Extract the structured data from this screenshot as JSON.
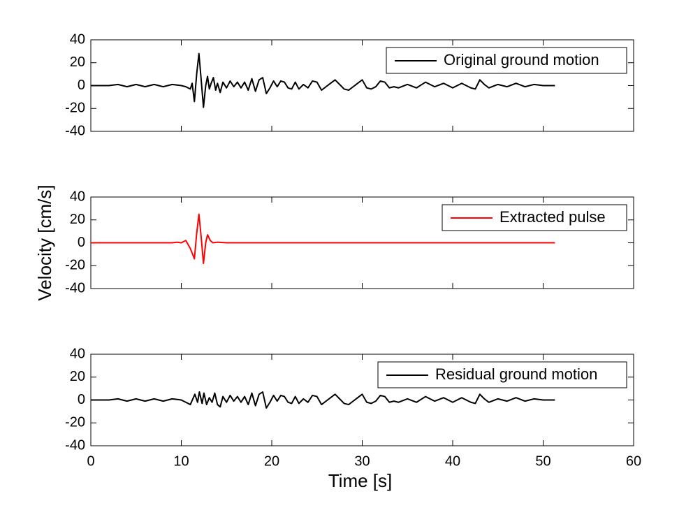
{
  "chart_data": [
    {
      "type": "line",
      "ylim": [
        -40,
        40
      ],
      "yticks": [
        -40,
        -20,
        0,
        20,
        40
      ],
      "xlim": [
        0,
        60
      ],
      "legend": "upper right",
      "series": [
        {
          "name": "Original ground motion",
          "color": "#000000",
          "x": [
            0,
            2,
            3,
            4,
            5,
            6,
            7,
            8,
            9,
            10,
            10.5,
            11,
            11.2,
            11.45,
            11.7,
            11.95,
            12.2,
            12.45,
            12.7,
            12.9,
            13.1,
            13.3,
            13.55,
            13.8,
            14,
            14.3,
            14.6,
            15,
            15.4,
            15.8,
            16.2,
            16.6,
            17,
            17.4,
            17.8,
            18.2,
            18.6,
            19,
            19.4,
            19.8,
            20.2,
            20.6,
            21,
            21.4,
            21.8,
            22.2,
            22.6,
            23,
            23.5,
            24,
            24.5,
            25,
            25.5,
            26,
            26.5,
            27,
            27.5,
            28,
            28.5,
            29,
            29.5,
            30,
            30.5,
            31,
            31.5,
            32,
            32.5,
            33,
            33.5,
            34,
            35,
            36,
            37,
            38,
            39,
            40,
            41,
            42,
            42.5,
            43,
            43.5,
            44,
            45,
            46,
            47,
            48,
            49,
            50,
            51.3
          ],
          "values": [
            0,
            0,
            1,
            -1,
            1,
            -1,
            1,
            -1,
            1,
            0,
            -1,
            -3,
            2,
            -14,
            10,
            28,
            5,
            -19,
            0,
            8,
            -3,
            2,
            7,
            -4,
            2,
            -6,
            3,
            -2,
            4,
            -1,
            3,
            -2,
            3,
            -4,
            6,
            -5,
            5,
            7,
            -7,
            -2,
            4,
            -1,
            4,
            3,
            -2,
            -3,
            3,
            -3,
            1,
            -2,
            4,
            3,
            -4,
            -1,
            2,
            5,
            1,
            -3,
            -4,
            -1,
            2,
            5,
            -2,
            -3,
            -1,
            4,
            3,
            -2,
            -1,
            -2,
            1,
            -2,
            3,
            -1,
            2,
            -2,
            2,
            -2,
            -3,
            5,
            1,
            -2,
            1,
            -1,
            2,
            -1,
            1,
            0,
            0
          ]
        }
      ]
    },
    {
      "type": "line",
      "ylim": [
        -40,
        40
      ],
      "yticks": [
        -40,
        -20,
        0,
        20,
        40
      ],
      "xlim": [
        0,
        60
      ],
      "legend": "upper right",
      "ylabel": "Velocity [cm/s]",
      "series": [
        {
          "name": "Extracted pulse",
          "color": "#ff0000",
          "x": [
            0,
            9,
            9.5,
            10,
            10.5,
            11,
            11.45,
            11.7,
            11.95,
            12.2,
            12.45,
            12.7,
            12.9,
            13.2,
            13.5,
            14,
            15,
            51.3
          ],
          "values": [
            0,
            0,
            0.5,
            0,
            2,
            -5,
            -14,
            8,
            25,
            5,
            -18,
            0,
            7,
            2,
            0,
            0.5,
            0,
            0
          ]
        }
      ]
    },
    {
      "type": "line",
      "ylim": [
        -40,
        40
      ],
      "yticks": [
        -40,
        -20,
        0,
        20,
        40
      ],
      "xlim": [
        0,
        60
      ],
      "xticks": [
        0,
        10,
        20,
        30,
        40,
        50,
        60
      ],
      "legend": "upper right",
      "xlabel": "Time [s]",
      "series": [
        {
          "name": "Residual ground motion",
          "color": "#000000",
          "x": [
            0,
            2,
            3,
            4,
            5,
            6,
            7,
            8,
            9,
            10,
            10.5,
            11,
            11.5,
            11.8,
            12,
            12.3,
            12.5,
            12.8,
            13.1,
            13.4,
            13.7,
            14,
            14.3,
            14.6,
            15,
            15.4,
            15.8,
            16.2,
            16.6,
            17,
            17.4,
            17.8,
            18.2,
            18.6,
            19,
            19.4,
            19.8,
            20.2,
            20.6,
            21,
            21.4,
            21.8,
            22.2,
            22.6,
            23,
            23.5,
            24,
            24.5,
            25,
            25.5,
            26,
            26.5,
            27,
            27.5,
            28,
            28.5,
            29,
            29.5,
            30,
            30.5,
            31,
            31.5,
            32,
            32.5,
            33,
            33.5,
            34,
            35,
            36,
            37,
            38,
            39,
            40,
            41,
            42,
            42.5,
            43,
            43.5,
            44,
            45,
            46,
            47,
            48,
            49,
            50,
            51.3
          ],
          "values": [
            0,
            0,
            1,
            -1,
            1,
            -1,
            1,
            -1,
            1,
            0,
            -2,
            -4,
            5,
            -2,
            7,
            -3,
            6,
            -4,
            2,
            -2,
            6,
            -4,
            -6,
            3,
            -2,
            4,
            -1,
            3,
            -2,
            3,
            -4,
            6,
            -5,
            5,
            7,
            -7,
            -2,
            4,
            -1,
            4,
            3,
            -2,
            -3,
            3,
            -3,
            1,
            -2,
            4,
            3,
            -4,
            -1,
            2,
            5,
            1,
            -3,
            -4,
            -1,
            2,
            5,
            -2,
            -3,
            -1,
            4,
            3,
            -2,
            -1,
            -2,
            1,
            -2,
            3,
            -1,
            2,
            -2,
            2,
            -2,
            -3,
            5,
            1,
            -2,
            1,
            -1,
            2,
            -1,
            1,
            0,
            0
          ]
        }
      ]
    }
  ]
}
